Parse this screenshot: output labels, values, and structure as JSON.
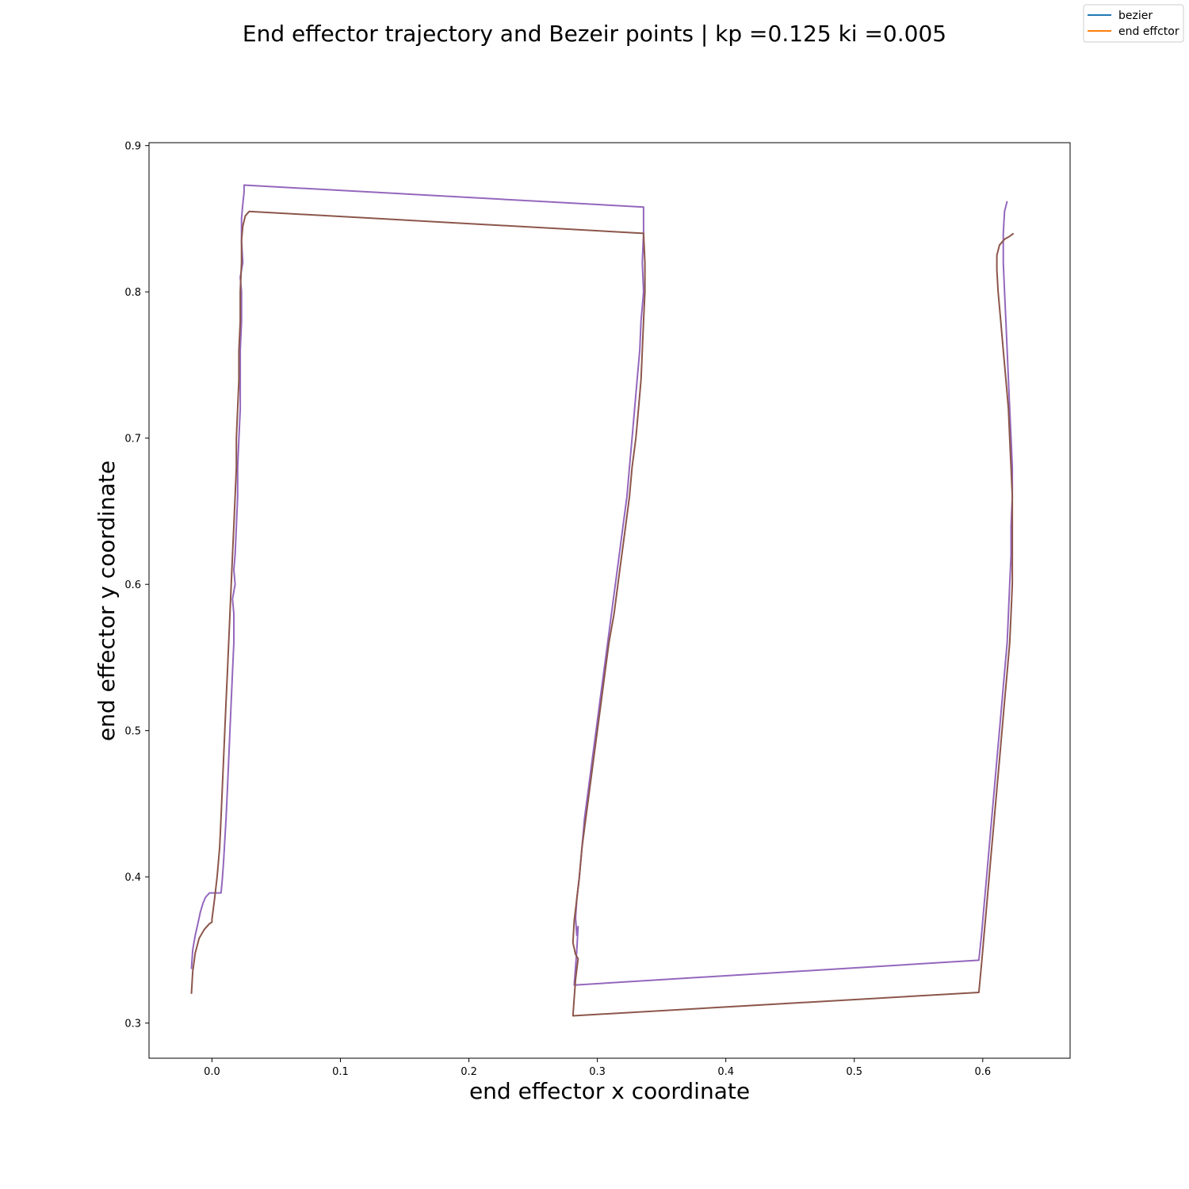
{
  "chart_data": {
    "type": "line",
    "title": "End effector trajectory and Bezeir points | kp =0.125 ki =0.005",
    "xlabel": "end effector x coordinate",
    "ylabel": "end effector y coordinate",
    "xlim": [
      -0.049,
      0.668
    ],
    "ylim": [
      0.276,
      0.902
    ],
    "xticks": [
      0.0,
      0.1,
      0.2,
      0.3,
      0.4,
      0.5,
      0.6
    ],
    "xtick_labels": [
      "0.0",
      "0.1",
      "0.2",
      "0.3",
      "0.4",
      "0.5",
      "0.6"
    ],
    "yticks": [
      0.3,
      0.4,
      0.5,
      0.6,
      0.7,
      0.8,
      0.9
    ],
    "ytick_labels": [
      "0.3",
      "0.4",
      "0.5",
      "0.6",
      "0.7",
      "0.8",
      "0.9"
    ],
    "grid": false,
    "legend_position": "top-right",
    "legend": [
      {
        "label": "bezier",
        "color": "#1f77b4"
      },
      {
        "label": "end effctor",
        "color": "#ff7f0e"
      }
    ],
    "series": [
      {
        "color": "#9467bd",
        "points": [
          [
            -0.016,
            0.337
          ],
          [
            -0.015,
            0.35
          ],
          [
            -0.013,
            0.36
          ],
          [
            -0.011,
            0.368
          ],
          [
            -0.009,
            0.376
          ],
          [
            -0.007,
            0.382
          ],
          [
            -0.005,
            0.386
          ],
          [
            -0.002,
            0.389
          ],
          [
            0.003,
            0.389
          ],
          [
            0.007,
            0.389
          ],
          [
            0.008,
            0.398
          ],
          [
            0.009,
            0.41
          ],
          [
            0.01,
            0.425
          ],
          [
            0.011,
            0.44
          ],
          [
            0.012,
            0.46
          ],
          [
            0.013,
            0.48
          ],
          [
            0.014,
            0.5
          ],
          [
            0.015,
            0.52
          ],
          [
            0.016,
            0.54
          ],
          [
            0.017,
            0.56
          ],
          [
            0.017,
            0.58
          ],
          [
            0.016,
            0.59
          ],
          [
            0.018,
            0.6
          ],
          [
            0.017,
            0.61
          ],
          [
            0.018,
            0.62
          ],
          [
            0.019,
            0.64
          ],
          [
            0.02,
            0.66
          ],
          [
            0.02,
            0.68
          ],
          [
            0.021,
            0.7
          ],
          [
            0.022,
            0.72
          ],
          [
            0.022,
            0.74
          ],
          [
            0.022,
            0.76
          ],
          [
            0.023,
            0.78
          ],
          [
            0.023,
            0.8
          ],
          [
            0.022,
            0.81
          ],
          [
            0.024,
            0.82
          ],
          [
            0.023,
            0.835
          ],
          [
            0.023,
            0.85
          ],
          [
            0.024,
            0.86
          ],
          [
            0.025,
            0.868
          ],
          [
            0.025,
            0.873
          ],
          [
            0.336,
            0.858
          ],
          [
            0.336,
            0.84
          ],
          [
            0.335,
            0.82
          ],
          [
            0.336,
            0.8
          ],
          [
            0.334,
            0.78
          ],
          [
            0.333,
            0.76
          ],
          [
            0.331,
            0.74
          ],
          [
            0.329,
            0.72
          ],
          [
            0.327,
            0.7
          ],
          [
            0.325,
            0.68
          ],
          [
            0.323,
            0.66
          ],
          [
            0.32,
            0.64
          ],
          [
            0.317,
            0.62
          ],
          [
            0.314,
            0.6
          ],
          [
            0.311,
            0.58
          ],
          [
            0.308,
            0.56
          ],
          [
            0.305,
            0.54
          ],
          [
            0.302,
            0.52
          ],
          [
            0.299,
            0.5
          ],
          [
            0.296,
            0.48
          ],
          [
            0.293,
            0.46
          ],
          [
            0.29,
            0.44
          ],
          [
            0.288,
            0.42
          ],
          [
            0.286,
            0.4
          ],
          [
            0.284,
            0.385
          ],
          [
            0.283,
            0.372
          ],
          [
            0.284,
            0.36
          ],
          [
            0.285,
            0.366
          ],
          [
            0.284,
            0.35
          ],
          [
            0.283,
            0.338
          ],
          [
            0.282,
            0.326
          ],
          [
            0.597,
            0.343
          ],
          [
            0.599,
            0.36
          ],
          [
            0.601,
            0.38
          ],
          [
            0.603,
            0.4
          ],
          [
            0.605,
            0.42
          ],
          [
            0.607,
            0.44
          ],
          [
            0.609,
            0.46
          ],
          [
            0.611,
            0.48
          ],
          [
            0.613,
            0.5
          ],
          [
            0.615,
            0.52
          ],
          [
            0.617,
            0.54
          ],
          [
            0.619,
            0.56
          ],
          [
            0.62,
            0.58
          ],
          [
            0.621,
            0.6
          ],
          [
            0.622,
            0.62
          ],
          [
            0.622,
            0.64
          ],
          [
            0.623,
            0.66
          ],
          [
            0.623,
            0.68
          ],
          [
            0.622,
            0.7
          ],
          [
            0.621,
            0.72
          ],
          [
            0.62,
            0.74
          ],
          [
            0.619,
            0.76
          ],
          [
            0.618,
            0.78
          ],
          [
            0.617,
            0.8
          ],
          [
            0.616,
            0.82
          ],
          [
            0.616,
            0.84
          ],
          [
            0.617,
            0.855
          ],
          [
            0.619,
            0.862
          ]
        ]
      },
      {
        "color": "#8c564b",
        "points": [
          [
            -0.016,
            0.32
          ],
          [
            -0.015,
            0.335
          ],
          [
            -0.013,
            0.348
          ],
          [
            -0.01,
            0.358
          ],
          [
            -0.006,
            0.364
          ],
          [
            -0.002,
            0.368
          ],
          [
            0.0,
            0.369
          ],
          [
            0.0,
            0.371
          ],
          [
            0.002,
            0.385
          ],
          [
            0.004,
            0.4
          ],
          [
            0.006,
            0.42
          ],
          [
            0.007,
            0.44
          ],
          [
            0.008,
            0.46
          ],
          [
            0.009,
            0.48
          ],
          [
            0.01,
            0.5
          ],
          [
            0.011,
            0.52
          ],
          [
            0.012,
            0.54
          ],
          [
            0.013,
            0.56
          ],
          [
            0.014,
            0.58
          ],
          [
            0.015,
            0.6
          ],
          [
            0.016,
            0.62
          ],
          [
            0.017,
            0.64
          ],
          [
            0.018,
            0.66
          ],
          [
            0.019,
            0.68
          ],
          [
            0.019,
            0.7
          ],
          [
            0.02,
            0.72
          ],
          [
            0.021,
            0.74
          ],
          [
            0.021,
            0.76
          ],
          [
            0.022,
            0.78
          ],
          [
            0.022,
            0.8
          ],
          [
            0.023,
            0.82
          ],
          [
            0.023,
            0.835
          ],
          [
            0.024,
            0.845
          ],
          [
            0.026,
            0.852
          ],
          [
            0.029,
            0.855
          ],
          [
            0.336,
            0.84
          ],
          [
            0.337,
            0.82
          ],
          [
            0.337,
            0.8
          ],
          [
            0.336,
            0.78
          ],
          [
            0.335,
            0.76
          ],
          [
            0.334,
            0.74
          ],
          [
            0.332,
            0.72
          ],
          [
            0.33,
            0.7
          ],
          [
            0.327,
            0.68
          ],
          [
            0.325,
            0.66
          ],
          [
            0.322,
            0.64
          ],
          [
            0.319,
            0.62
          ],
          [
            0.316,
            0.6
          ],
          [
            0.313,
            0.58
          ],
          [
            0.309,
            0.56
          ],
          [
            0.306,
            0.54
          ],
          [
            0.303,
            0.52
          ],
          [
            0.3,
            0.5
          ],
          [
            0.297,
            0.48
          ],
          [
            0.294,
            0.46
          ],
          [
            0.291,
            0.44
          ],
          [
            0.288,
            0.42
          ],
          [
            0.286,
            0.4
          ],
          [
            0.284,
            0.385
          ],
          [
            0.282,
            0.37
          ],
          [
            0.281,
            0.355
          ],
          [
            0.283,
            0.347
          ],
          [
            0.285,
            0.344
          ],
          [
            0.283,
            0.33
          ],
          [
            0.281,
            0.305
          ],
          [
            0.597,
            0.321
          ],
          [
            0.599,
            0.34
          ],
          [
            0.601,
            0.36
          ],
          [
            0.603,
            0.38
          ],
          [
            0.605,
            0.4
          ],
          [
            0.607,
            0.42
          ],
          [
            0.609,
            0.44
          ],
          [
            0.611,
            0.46
          ],
          [
            0.613,
            0.48
          ],
          [
            0.615,
            0.5
          ],
          [
            0.617,
            0.52
          ],
          [
            0.619,
            0.54
          ],
          [
            0.621,
            0.56
          ],
          [
            0.622,
            0.58
          ],
          [
            0.623,
            0.6
          ],
          [
            0.623,
            0.62
          ],
          [
            0.623,
            0.64
          ],
          [
            0.623,
            0.66
          ],
          [
            0.622,
            0.68
          ],
          [
            0.621,
            0.7
          ],
          [
            0.62,
            0.72
          ],
          [
            0.618,
            0.74
          ],
          [
            0.616,
            0.76
          ],
          [
            0.614,
            0.78
          ],
          [
            0.612,
            0.8
          ],
          [
            0.611,
            0.815
          ],
          [
            0.611,
            0.825
          ],
          [
            0.613,
            0.832
          ],
          [
            0.617,
            0.836
          ],
          [
            0.621,
            0.838
          ],
          [
            0.624,
            0.84
          ]
        ]
      }
    ]
  }
}
